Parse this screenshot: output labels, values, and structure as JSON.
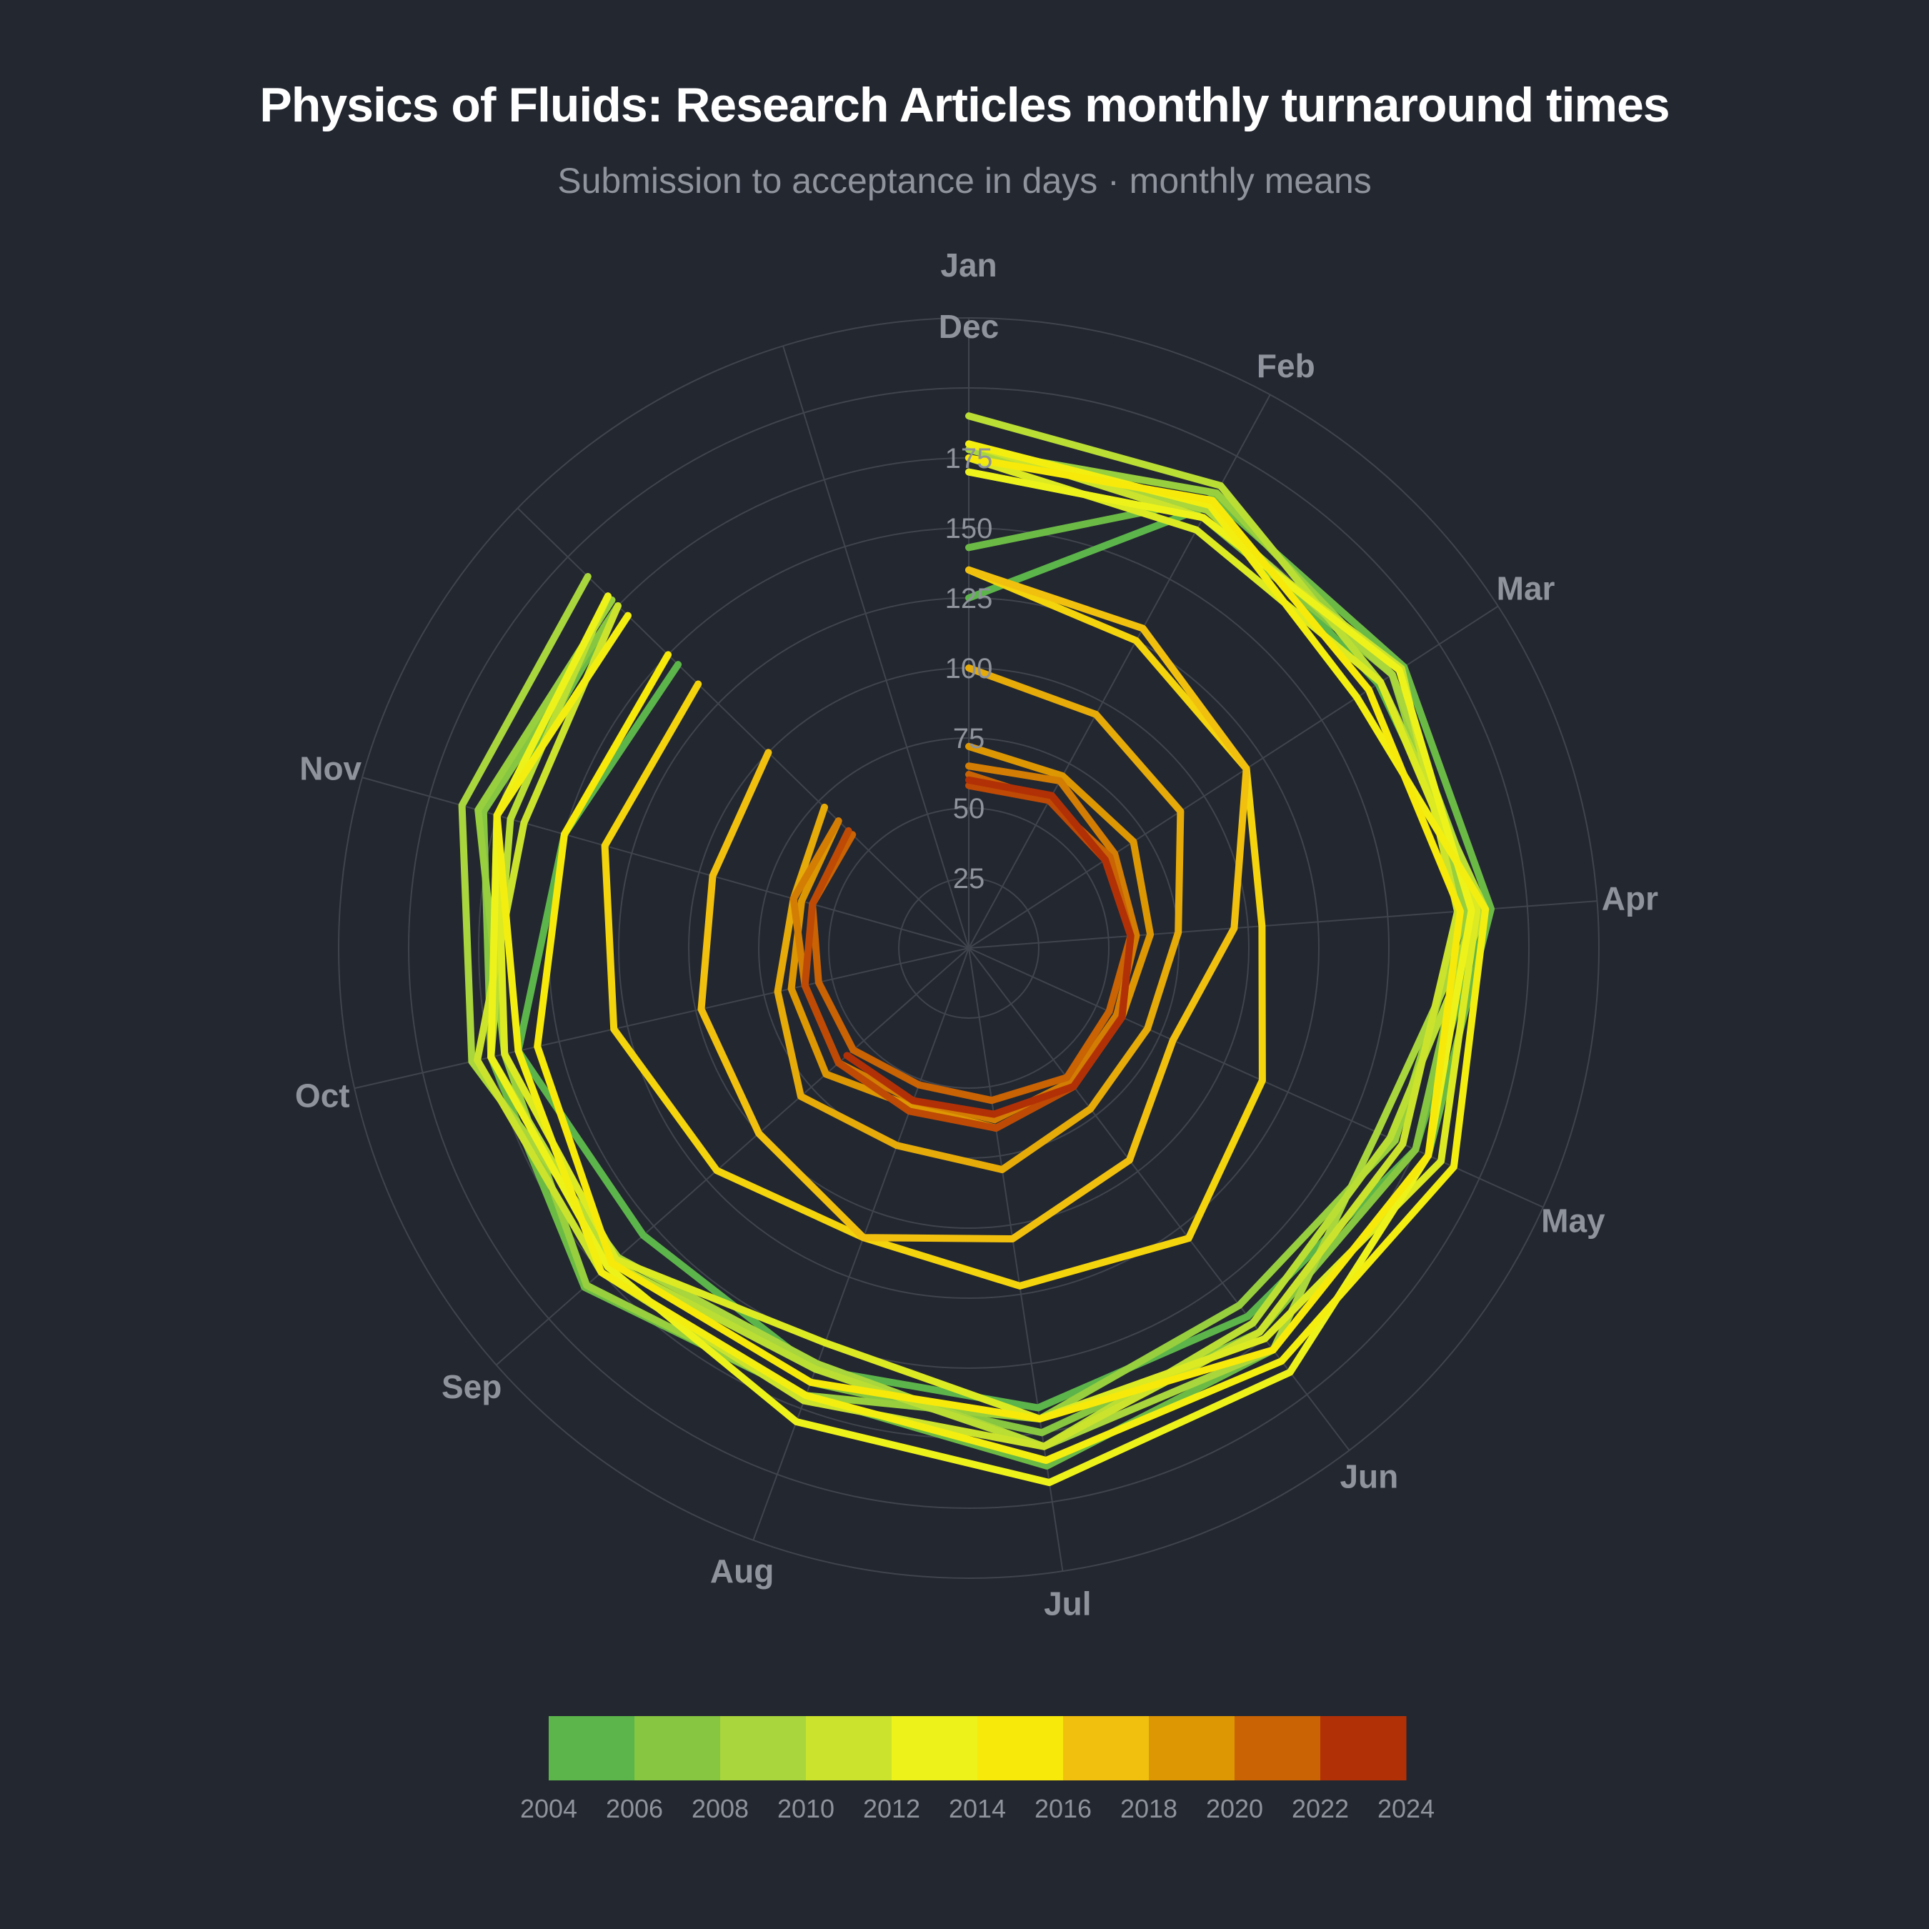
{
  "title": "Physics of Fluids: Research Articles monthly turnaround times",
  "subtitle": "Submission to acceptance in days · monthly means",
  "chart_data": {
    "type": "line",
    "projection": "polar",
    "title": "Physics of Fluids: Research Articles monthly turnaround times",
    "subtitle": "Submission to acceptance in days · monthly means",
    "theta_labels": [
      "Jan",
      "Feb",
      "Mar",
      "Apr",
      "May",
      "Jun",
      "Jul",
      "Aug",
      "Sep",
      "Oct",
      "Nov",
      "Dec"
    ],
    "r_ticks": [
      25,
      50,
      75,
      100,
      125,
      150,
      175
    ],
    "r_range": [
      0,
      225
    ],
    "direction": "clockwise",
    "zero_location": "top",
    "grid": true,
    "colorbar": {
      "ticks": [
        "2004",
        "2006",
        "2008",
        "2010",
        "2012",
        "2014",
        "2016",
        "2018",
        "2020",
        "2022",
        "2024"
      ],
      "bands": [
        "#5cb54a",
        "#86c641",
        "#a9d63c",
        "#cbe32d",
        "#edf21a",
        "#f7e90a",
        "#f1c00f",
        "#dd9703",
        "#c96304",
        "#b23006"
      ],
      "placement": "bottom"
    },
    "series": [
      {
        "year": 2004,
        "color": "#5cb54a",
        "values": [
          125,
          180,
          174,
          185,
          175,
          165,
          166,
          160,
          155,
          165,
          150,
          145
        ]
      },
      {
        "year": 2005,
        "color": "#6cba46",
        "values": [
          143,
          183,
          185,
          187,
          180,
          180,
          187,
          170,
          183,
          175,
          175,
          175
        ]
      },
      {
        "year": 2006,
        "color": "#86c641",
        "values": [
          170,
          175,
          180,
          180,
          175,
          172,
          175,
          165,
          170,
          175,
          180,
          175
        ]
      },
      {
        "year": 2007,
        "color": "#97cf3e",
        "values": [
          178,
          185,
          180,
          178,
          167,
          160,
          170,
          170,
          182,
          170,
          182,
          178
        ]
      },
      {
        "year": 2008,
        "color": "#a9d63c",
        "values": [
          178,
          178,
          180,
          183,
          160,
          180,
          180,
          158,
          167,
          182,
          188,
          190
        ]
      },
      {
        "year": 2009,
        "color": "#bade34",
        "values": [
          190,
          188,
          175,
          185,
          165,
          168,
          180,
          160,
          170,
          175,
          170,
          180
        ]
      },
      {
        "year": 2010,
        "color": "#cbe32d",
        "values": [
          180,
          175,
          184,
          175,
          170,
          172,
          180,
          172,
          175,
          180,
          165,
          175
        ]
      },
      {
        "year": 2011,
        "color": "#dcea23",
        "values": [
          175,
          170,
          175,
          182,
          185,
          175,
          170,
          150,
          168,
          170,
          175,
          170
        ]
      },
      {
        "year": 2012,
        "color": "#edf21a",
        "values": [
          170,
          175,
          183,
          180,
          180,
          190,
          193,
          180,
          172,
          175,
          175,
          180
        ]
      },
      {
        "year": 2013,
        "color": "#f3ee10",
        "values": [
          180,
          180,
          165,
          185,
          190,
          185,
          185,
          170,
          175,
          165,
          175,
          170
        ]
      },
      {
        "year": 2014,
        "color": "#f7e90a",
        "values": [
          175,
          182,
          170,
          176,
          180,
          180,
          170,
          165,
          170,
          158,
          150,
          150
        ]
      },
      {
        "year": 2015,
        "color": "#f4d40c",
        "values": [
          135,
          125,
          118,
          105,
          115,
          130,
          122,
          110,
          120,
          130,
          135,
          135
        ]
      },
      {
        "year": 2016,
        "color": "#f1c00f",
        "values": [
          135,
          130,
          118,
          95,
          80,
          95,
          105,
          110,
          100,
          98,
          95,
          100
        ]
      },
      {
        "year": 2017,
        "color": "#e6ab09",
        "values": [
          100,
          95,
          90,
          75,
          70,
          72,
          80,
          75,
          80,
          70,
          65,
          72
        ]
      },
      {
        "year": 2018,
        "color": "#dd9703",
        "values": [
          72,
          70,
          70,
          65,
          60,
          62,
          65,
          60,
          68,
          65,
          62,
          65
        ]
      },
      {
        "year": 2019,
        "color": "#d37d04",
        "values": [
          65,
          68,
          62,
          60,
          58,
          60,
          62,
          58,
          62,
          60,
          65,
          65
        ]
      },
      {
        "year": 2020,
        "color": "#c96304",
        "values": [
          62,
          60,
          60,
          58,
          55,
          58,
          55,
          52,
          55,
          55,
          58,
          58
        ]
      },
      {
        "year": 2021,
        "color": "#be4a05",
        "values": [
          58,
          60,
          58,
          58,
          60,
          62,
          65,
          62,
          62,
          60,
          58,
          60
        ]
      },
      {
        "year": 2022,
        "color": "#b23006",
        "values": [
          60,
          62,
          58,
          58,
          60,
          62,
          60,
          58,
          58
        ]
      }
    ]
  }
}
